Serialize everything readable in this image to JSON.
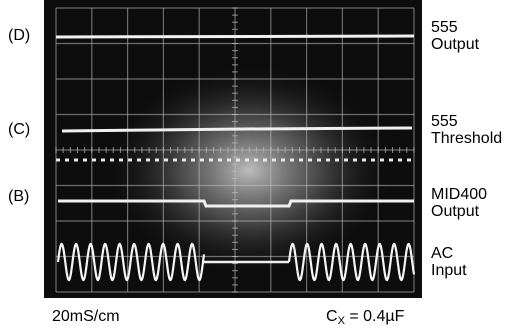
{
  "trace_labels": [
    "(D)",
    "(C)",
    "(B)"
  ],
  "channels": [
    {
      "line1": "555",
      "line2": "Output"
    },
    {
      "line1": "555",
      "line2": "Threshold"
    },
    {
      "line1": "MID400",
      "line2": "Output"
    },
    {
      "line1": "AC",
      "line2": "Input"
    }
  ],
  "timebase": "20mS/cm",
  "cap": {
    "var": "C",
    "sub": "X",
    "value": "= 0.4µF"
  }
}
